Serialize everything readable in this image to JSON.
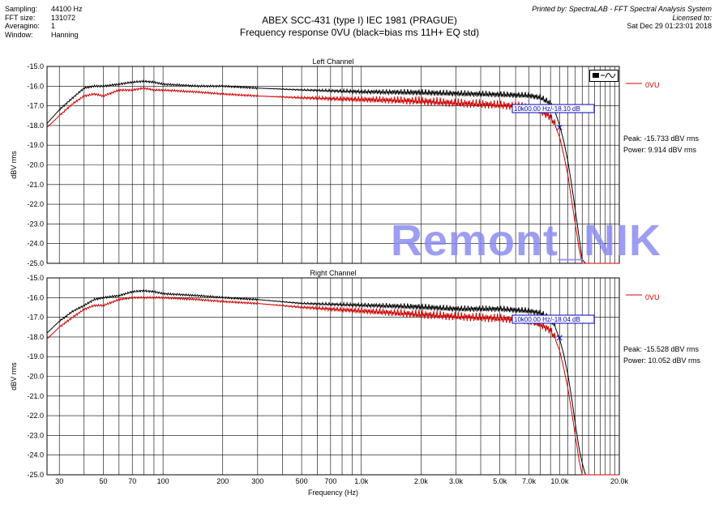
{
  "info": {
    "rows": [
      {
        "key": "Sampling:",
        "value": "44100 Hz"
      },
      {
        "key": "FFT size:",
        "value": "131072"
      },
      {
        "key": "Averagino:",
        "value": "1"
      },
      {
        "key": "Window:",
        "value": "Hanning"
      }
    ]
  },
  "header": {
    "title": "ABEX SCC-431 (type I) IEC 1981 (PRAGUE)",
    "subtitle": "Frequency response 0VU (black=bias ms 11H+ EQ std)"
  },
  "printed": {
    "line1": "Printed by: SpectraLAB - FFT Spectral Analysis System",
    "line2": "Licensed to:",
    "date": "Sat Dec 29 01:23:01 2018"
  },
  "watermark": "Remont_NIK",
  "colors": {
    "series_black": "#000000",
    "series_red": "#d00000",
    "marker": "#0000c0",
    "grid": "#000000"
  },
  "chart_data": [
    {
      "type": "line",
      "title": "Left Channel",
      "xlabel": "",
      "ylabel": "dBV rms",
      "xscale": "log",
      "xlim": [
        26,
        20000
      ],
      "ylim": [
        -25.0,
        -15.0
      ],
      "y_ticks": [
        "-15.0",
        "-16.0",
        "-17.0",
        "-18.0",
        "-19.0",
        "-20.0",
        "-21.0",
        "-22.0",
        "-23.0",
        "-24.0",
        "-25.0"
      ],
      "legend": {
        "label": "0VU",
        "placement": "top-right"
      },
      "marker_label": "10k00.00 Hz/-18.10 dB",
      "stats": {
        "peak": "Peak: -15.733 dBV rms",
        "power": "Power: 9.914 dBV rms"
      },
      "series": [
        {
          "color": "black",
          "x": [
            26,
            30,
            35,
            40,
            45,
            50,
            60,
            70,
            80,
            90,
            100,
            150,
            200,
            300,
            500,
            1000,
            2000,
            3000,
            5000,
            7000,
            8000,
            9000,
            9500,
            10000,
            10500,
            11000,
            11500,
            12000,
            12500,
            13000,
            13500,
            14000,
            20000
          ],
          "y": [
            -17.9,
            -17.2,
            -16.6,
            -16.1,
            -16.0,
            -16.0,
            -15.9,
            -15.8,
            -15.75,
            -15.8,
            -15.9,
            -16.0,
            -16.0,
            -16.1,
            -16.2,
            -16.3,
            -16.35,
            -16.4,
            -16.45,
            -16.5,
            -16.6,
            -16.9,
            -17.3,
            -18.0,
            -18.8,
            -19.8,
            -21.0,
            -22.3,
            -23.6,
            -24.8,
            -25.0,
            -25.0,
            -25.0
          ]
        },
        {
          "name": "0VU",
          "color": "red",
          "x": [
            26,
            30,
            35,
            40,
            45,
            50,
            60,
            70,
            80,
            90,
            100,
            150,
            200,
            300,
            500,
            1000,
            2000,
            3000,
            5000,
            7000,
            8000,
            9000,
            9500,
            10000,
            10500,
            11000,
            11500,
            12000,
            12500,
            13000,
            13500,
            14000,
            20000
          ],
          "y": [
            -18.1,
            -17.5,
            -16.9,
            -16.5,
            -16.4,
            -16.5,
            -16.2,
            -16.2,
            -16.1,
            -16.2,
            -16.2,
            -16.3,
            -16.4,
            -16.5,
            -16.6,
            -16.7,
            -16.8,
            -16.9,
            -17.0,
            -17.1,
            -17.3,
            -17.6,
            -18.0,
            -18.6,
            -19.5,
            -20.5,
            -21.8,
            -23.0,
            -24.2,
            -25.0,
            -25.0,
            -25.0,
            -25.0
          ]
        }
      ]
    },
    {
      "type": "line",
      "title": "Right Channel",
      "xlabel": "Frequency (Hz)",
      "ylabel": "dBV rms",
      "xscale": "log",
      "xlim": [
        26,
        20000
      ],
      "ylim": [
        -25.0,
        -15.0
      ],
      "y_ticks": [
        "-15.0",
        "-16.0",
        "-17.0",
        "-18.0",
        "-19.0",
        "-20.0",
        "-21.0",
        "-22.0",
        "-23.0",
        "-24.0",
        "-25.0"
      ],
      "x_ticks": [
        {
          "v": 30,
          "label": "30"
        },
        {
          "v": 50,
          "label": "50"
        },
        {
          "v": 70,
          "label": "70"
        },
        {
          "v": 100,
          "label": "100"
        },
        {
          "v": 200,
          "label": "200"
        },
        {
          "v": 300,
          "label": "300"
        },
        {
          "v": 500,
          "label": "500"
        },
        {
          "v": 700,
          "label": "700"
        },
        {
          "v": 1000,
          "label": "1.0k"
        },
        {
          "v": 2000,
          "label": "2.0k"
        },
        {
          "v": 3000,
          "label": "3.0k"
        },
        {
          "v": 5000,
          "label": "5.0k"
        },
        {
          "v": 7000,
          "label": "7.0k"
        },
        {
          "v": 10000,
          "label": "10.0k"
        },
        {
          "v": 20000,
          "label": "20.0k"
        }
      ],
      "legend": {
        "label": "0VU",
        "placement": "top-right"
      },
      "marker_label": "10k00.00 Hz/-18.04 dB",
      "stats": {
        "peak": "Peak: -15.528 dBV rms",
        "power": "Power: 10.052 dBV rms"
      },
      "series": [
        {
          "color": "black",
          "x": [
            26,
            30,
            35,
            40,
            45,
            50,
            60,
            70,
            80,
            90,
            100,
            150,
            200,
            300,
            500,
            1000,
            2000,
            3000,
            5000,
            7000,
            8000,
            9000,
            9500,
            10000,
            10500,
            11000,
            11500,
            12000,
            12500,
            13000,
            13500,
            14000,
            20000
          ],
          "y": [
            -17.8,
            -17.2,
            -16.7,
            -16.4,
            -16.1,
            -16.0,
            -15.9,
            -15.7,
            -15.65,
            -15.7,
            -15.8,
            -15.9,
            -16.0,
            -16.1,
            -16.3,
            -16.4,
            -16.5,
            -16.6,
            -16.6,
            -16.7,
            -16.8,
            -17.1,
            -17.5,
            -18.1,
            -18.9,
            -19.9,
            -21.1,
            -22.4,
            -23.6,
            -24.4,
            -25.0,
            -25.0,
            -25.0
          ]
        },
        {
          "name": "0VU",
          "color": "red",
          "x": [
            26,
            30,
            35,
            40,
            45,
            50,
            60,
            70,
            80,
            90,
            100,
            150,
            200,
            300,
            500,
            1000,
            2000,
            3000,
            5000,
            7000,
            8000,
            9000,
            9500,
            10000,
            10500,
            11000,
            11500,
            12000,
            12500,
            13000,
            13500,
            14000,
            20000
          ],
          "y": [
            -18.1,
            -17.5,
            -17.0,
            -16.6,
            -16.4,
            -16.4,
            -16.1,
            -16.0,
            -16.0,
            -16.0,
            -16.0,
            -16.1,
            -16.2,
            -16.3,
            -16.5,
            -16.7,
            -16.9,
            -17.0,
            -17.1,
            -17.2,
            -17.4,
            -17.7,
            -18.1,
            -18.7,
            -19.6,
            -20.6,
            -21.8,
            -23.0,
            -24.2,
            -25.0,
            -25.0,
            -25.0,
            -25.0
          ]
        }
      ]
    }
  ]
}
